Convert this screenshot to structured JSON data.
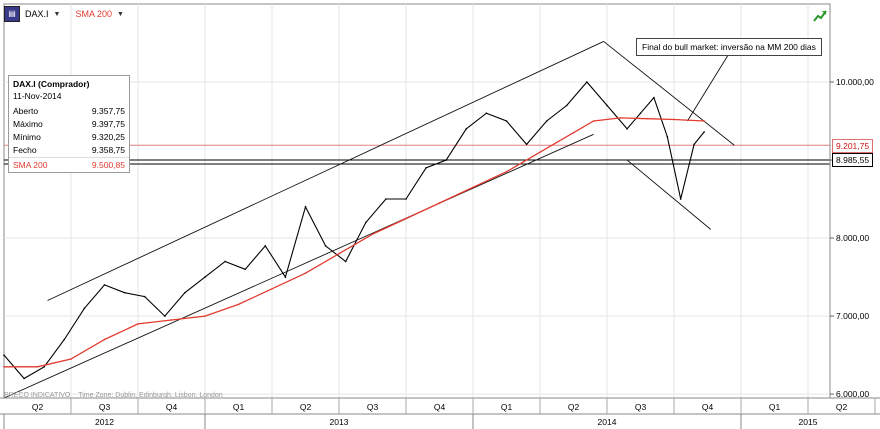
{
  "toolbar": {
    "symbol": "DAX.I",
    "indicator": "SMA 200",
    "colors": {
      "sma": "#e23b30",
      "price": "#000000"
    }
  },
  "infobox": {
    "title": "DAX.I (Comprador)",
    "date": "11-Nov-2014",
    "rows": [
      {
        "label": "Aberto",
        "value": "9.357,75"
      },
      {
        "label": "Máximo",
        "value": "9.397,75"
      },
      {
        "label": "Mínimo",
        "value": "9.320,25"
      },
      {
        "label": "Fecho",
        "value": "9.358,75"
      }
    ],
    "sma_label": "SMA 200",
    "sma_value": "9.500,85"
  },
  "annotation": "Final do bull market: inversão na MM 200 dias",
  "price_tags": {
    "current": "9.201,75",
    "support": "8.985,55"
  },
  "footer": {
    "indicative": "PREÇO INDICATIVO",
    "timezone": "Time Zone: Dublin, Edinburgh, Lisbon, London"
  },
  "chart_data": {
    "type": "line",
    "y_axis_position": "right",
    "ylim": [
      5950,
      11000
    ],
    "yticks": [
      {
        "value": 6000,
        "label": "6.000,00"
      },
      {
        "value": 7000,
        "label": "7.000,00"
      },
      {
        "value": 8000,
        "label": "8.000,00"
      },
      {
        "value": 9000,
        "label": "9.000,00"
      },
      {
        "value": 10000,
        "label": "10.000,00"
      }
    ],
    "quarters": [
      "Q2",
      "Q3",
      "Q4",
      "Q1",
      "Q2",
      "Q3",
      "Q4",
      "Q1",
      "Q2",
      "Q3",
      "Q4",
      "Q1",
      "Q2"
    ],
    "years": [
      {
        "label": "2012",
        "start_quarter": 0,
        "end_quarter": 3
      },
      {
        "label": "2013",
        "start_quarter": 3,
        "end_quarter": 7
      },
      {
        "label": "2014",
        "start_quarter": 7,
        "end_quarter": 11
      },
      {
        "label": "2015",
        "start_quarter": 11,
        "end_quarter": 13
      }
    ],
    "time_range": [
      0,
      12.45
    ],
    "series": [
      {
        "name": "DAX.I",
        "color": "#000000",
        "x": [
          0,
          0.3,
          0.6,
          0.9,
          1.2,
          1.5,
          1.8,
          2.1,
          2.4,
          2.7,
          3.0,
          3.3,
          3.6,
          3.9,
          4.2,
          4.5,
          4.8,
          5.1,
          5.4,
          5.7,
          6.0,
          6.3,
          6.6,
          6.9,
          7.2,
          7.5,
          7.8,
          8.1,
          8.4,
          8.7,
          9.0,
          9.3,
          9.5,
          9.7,
          9.9,
          10.1,
          10.3,
          10.45
        ],
        "y": [
          6500,
          6200,
          6350,
          6700,
          7100,
          7400,
          7300,
          7250,
          7000,
          7300,
          7500,
          7700,
          7600,
          7900,
          7500,
          8400,
          7900,
          7700,
          8200,
          8500,
          8500,
          8900,
          9000,
          9400,
          9600,
          9500,
          9200,
          9500,
          9700,
          10000,
          9700,
          9400,
          9600,
          9800,
          9300,
          8500,
          9200,
          9360
        ]
      },
      {
        "name": "SMA 200",
        "color": "#e23b30",
        "x": [
          0,
          0.5,
          1.0,
          1.5,
          2.0,
          2.5,
          3.0,
          3.5,
          4.0,
          4.5,
          5.0,
          5.5,
          6.0,
          6.5,
          7.0,
          7.5,
          8.0,
          8.5,
          8.8,
          9.2,
          9.6,
          10.0,
          10.45
        ],
        "y": [
          6350,
          6350,
          6450,
          6700,
          6900,
          6950,
          7000,
          7150,
          7350,
          7550,
          7800,
          8050,
          8250,
          8450,
          8650,
          8850,
          9100,
          9350,
          9500,
          9540,
          9530,
          9520,
          9500
        ]
      }
    ],
    "trendlines": [
      {
        "x1": 0.65,
        "y1": 7200,
        "x2": 8.95,
        "y2": 10520
      },
      {
        "x1": 0.0,
        "y1": 5950,
        "x2": 8.8,
        "y2": 9330
      },
      {
        "x1": 8.95,
        "y1": 10520,
        "x2": 10.9,
        "y2": 9190
      },
      {
        "x1": 9.3,
        "y1": 9000,
        "x2": 10.55,
        "y2": 8110
      }
    ],
    "hlines": [
      {
        "y": 9190,
        "color": "#e08080"
      },
      {
        "y": 9000,
        "color": "#000000"
      },
      {
        "y": 8950,
        "color": "#000000"
      }
    ]
  }
}
